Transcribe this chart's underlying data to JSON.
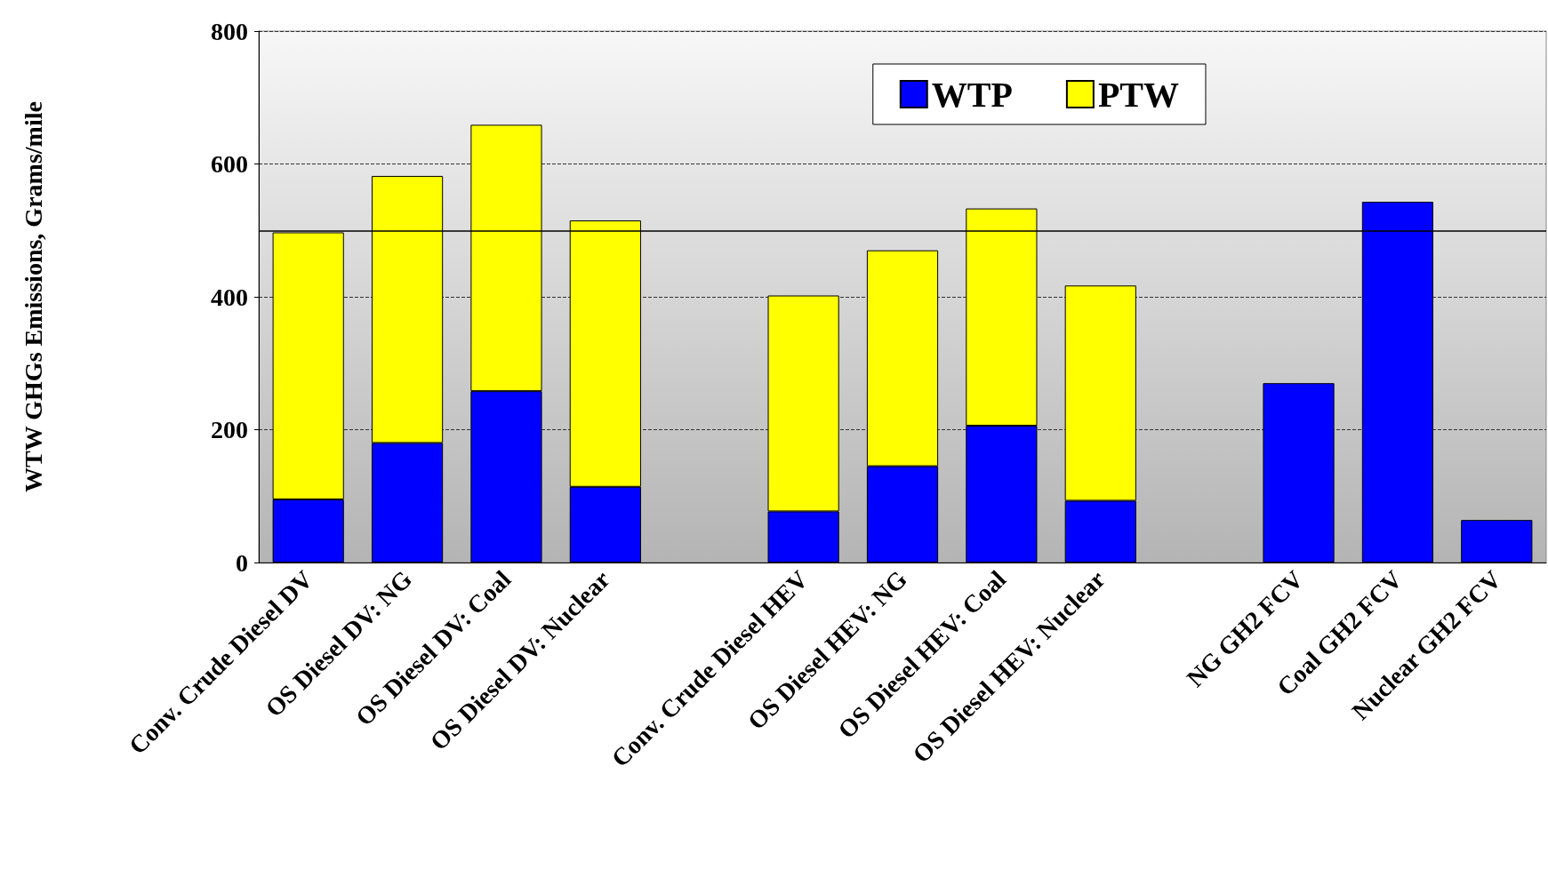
{
  "chart_data": {
    "type": "bar",
    "stacked": true,
    "ylabel": "WTW GHGs Emissions, Grams/mile",
    "categories": [
      "Conv. Crude Diesel DV",
      "OS Diesel DV: NG",
      "OS Diesel DV: Coal",
      "OS Diesel DV: Nuclear",
      null,
      "Conv. Crude Diesel HEV",
      "OS Diesel HEV: NG",
      "OS Diesel HEV: Coal",
      "OS Diesel HEV: Nuclear",
      null,
      "NG GH2 FCV",
      "Coal GH2 FCV",
      "Nuclear GH2 FCV"
    ],
    "series": [
      {
        "name": "WTP",
        "color": "#0000ff",
        "values": [
          95,
          180,
          258,
          114,
          null,
          77,
          145,
          206,
          93,
          null,
          270,
          543,
          64
        ]
      },
      {
        "name": "PTW",
        "color": "#ffff00",
        "values": [
          402,
          402,
          401,
          401,
          null,
          325,
          325,
          327,
          324,
          null,
          null,
          null,
          null
        ]
      }
    ],
    "ylim": [
      0,
      800
    ],
    "yticks": [
      0,
      200,
      400,
      600,
      800
    ],
    "grid": "y",
    "legend": "top right",
    "ref_lines": [
      {
        "axis": "y",
        "value": 500,
        "color": "#000000",
        "line_style": "solid"
      }
    ]
  }
}
